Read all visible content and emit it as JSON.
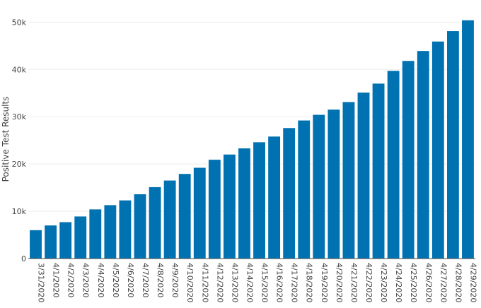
{
  "chart_data": {
    "type": "bar",
    "title": "",
    "xlabel": "",
    "ylabel": "Positive Test Results",
    "ylim": [
      0,
      50500
    ],
    "yticks": [
      0,
      10000,
      20000,
      30000,
      40000,
      50000
    ],
    "ytick_labels": [
      "0",
      "10k",
      "20k",
      "30k",
      "40k",
      "50k"
    ],
    "grid": true,
    "bar_color": "#0072b2",
    "categories": [
      "3/31/2020",
      "4/1/2020",
      "4/2/2020",
      "4/3/2020",
      "4/4/2020",
      "4/5/2020",
      "4/6/2020",
      "4/7/2020",
      "4/8/2020",
      "4/9/2020",
      "4/10/2020",
      "4/11/2020",
      "4/12/2020",
      "4/13/2020",
      "4/14/2020",
      "4/15/2020",
      "4/16/2020",
      "4/17/2020",
      "4/18/2020",
      "4/19/2020",
      "4/20/2020",
      "4/21/2020",
      "4/22/2020",
      "4/23/2020",
      "4/24/2020",
      "4/25/2020",
      "4/26/2020",
      "4/27/2020",
      "4/28/2020",
      "4/29/2020"
    ],
    "values": [
      6000,
      7000,
      7700,
      8900,
      10400,
      11300,
      12300,
      13600,
      15100,
      16500,
      17900,
      19200,
      20900,
      22000,
      23300,
      24600,
      25800,
      27600,
      29200,
      30400,
      31500,
      33100,
      35100,
      37000,
      39700,
      41800,
      43900,
      45900,
      48100,
      50400
    ]
  }
}
